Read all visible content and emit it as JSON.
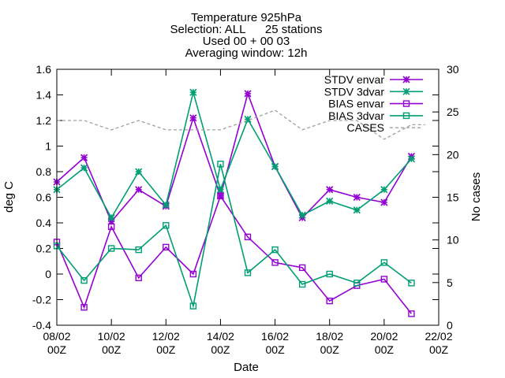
{
  "chart_data": {
    "type": "line",
    "title_lines": [
      "Temperature 925hPa",
      "Selection: ALL      25 stations",
      "Used 00 + 00 03",
      "Averaging window: 12h"
    ],
    "xlabel": "Date",
    "ylabel": "deg C",
    "y2label": "No cases",
    "xlim": [
      0,
      14
    ],
    "ylim": [
      -0.4,
      1.6
    ],
    "y2lim": [
      0,
      30
    ],
    "x_ticks": [
      {
        "x": 0,
        "label": [
          "08/02",
          "00Z"
        ]
      },
      {
        "x": 2,
        "label": [
          "10/02",
          "00Z"
        ]
      },
      {
        "x": 4,
        "label": [
          "12/02",
          "00Z"
        ]
      },
      {
        "x": 6,
        "label": [
          "14/02",
          "00Z"
        ]
      },
      {
        "x": 8,
        "label": [
          "16/02",
          "00Z"
        ]
      },
      {
        "x": 10,
        "label": [
          "18/02",
          "00Z"
        ]
      },
      {
        "x": 12,
        "label": [
          "20/02",
          "00Z"
        ]
      },
      {
        "x": 14,
        "label": [
          "22/02",
          "00Z"
        ]
      }
    ],
    "y_ticks": [
      "-0.4",
      "-0.2",
      "0",
      "0.2",
      "0.4",
      "0.6",
      "0.8",
      "1",
      "1.2",
      "1.4",
      "1.6"
    ],
    "y2_ticks": [
      "0",
      "5",
      "10",
      "15",
      "20",
      "25",
      "30"
    ],
    "legend_position": "top-right",
    "series": [
      {
        "name": "STDV envar",
        "axis": "y1",
        "color": "#9400d3",
        "marker": "star",
        "dash": false,
        "x": [
          0,
          1,
          2,
          3,
          4,
          5,
          6,
          7,
          8,
          9,
          10,
          11,
          12,
          13
        ],
        "values": [
          0.72,
          0.91,
          0.41,
          0.66,
          0.53,
          1.22,
          0.61,
          1.41,
          0.84,
          0.44,
          0.66,
          0.6,
          0.56,
          0.92
        ]
      },
      {
        "name": "STDV 3dvar",
        "axis": "y1",
        "color": "#009e73",
        "marker": "star",
        "dash": false,
        "x": [
          0,
          1,
          2,
          3,
          4,
          5,
          6,
          7,
          8,
          9,
          10,
          11,
          12,
          13
        ],
        "values": [
          0.66,
          0.83,
          0.44,
          0.8,
          0.54,
          1.42,
          0.66,
          1.21,
          0.84,
          0.46,
          0.57,
          0.5,
          0.66,
          0.9
        ]
      },
      {
        "name": "BIAS envar",
        "axis": "y1",
        "color": "#9400d3",
        "marker": "square",
        "dash": false,
        "x": [
          0,
          1,
          2,
          3,
          4,
          5,
          6,
          7,
          8,
          9,
          10,
          11,
          12,
          13
        ],
        "values": [
          0.25,
          -0.26,
          0.37,
          -0.03,
          0.21,
          0.0,
          0.61,
          0.29,
          0.09,
          0.05,
          -0.21,
          -0.09,
          -0.04,
          -0.31
        ]
      },
      {
        "name": "BIAS 3dvar",
        "axis": "y1",
        "color": "#009e73",
        "marker": "square",
        "dash": false,
        "x": [
          0,
          1,
          2,
          3,
          4,
          5,
          6,
          7,
          8,
          9,
          10,
          11,
          12,
          13
        ],
        "values": [
          0.22,
          -0.05,
          0.2,
          0.19,
          0.38,
          -0.25,
          0.86,
          0.01,
          0.19,
          -0.08,
          0.0,
          -0.07,
          0.09,
          -0.07
        ]
      },
      {
        "name": "CASES",
        "axis": "y2",
        "color": "#a0a0a0",
        "marker": "none",
        "dash": true,
        "x": [
          0,
          1,
          2,
          3,
          4,
          5,
          6,
          7,
          8,
          9,
          10,
          11,
          12,
          13,
          13.5
        ],
        "values": [
          24.0,
          24.0,
          22.9,
          24.0,
          22.9,
          22.9,
          22.9,
          24.0,
          25.2,
          22.9,
          24.0,
          24.0,
          21.8,
          23.5,
          23.5
        ]
      }
    ]
  }
}
